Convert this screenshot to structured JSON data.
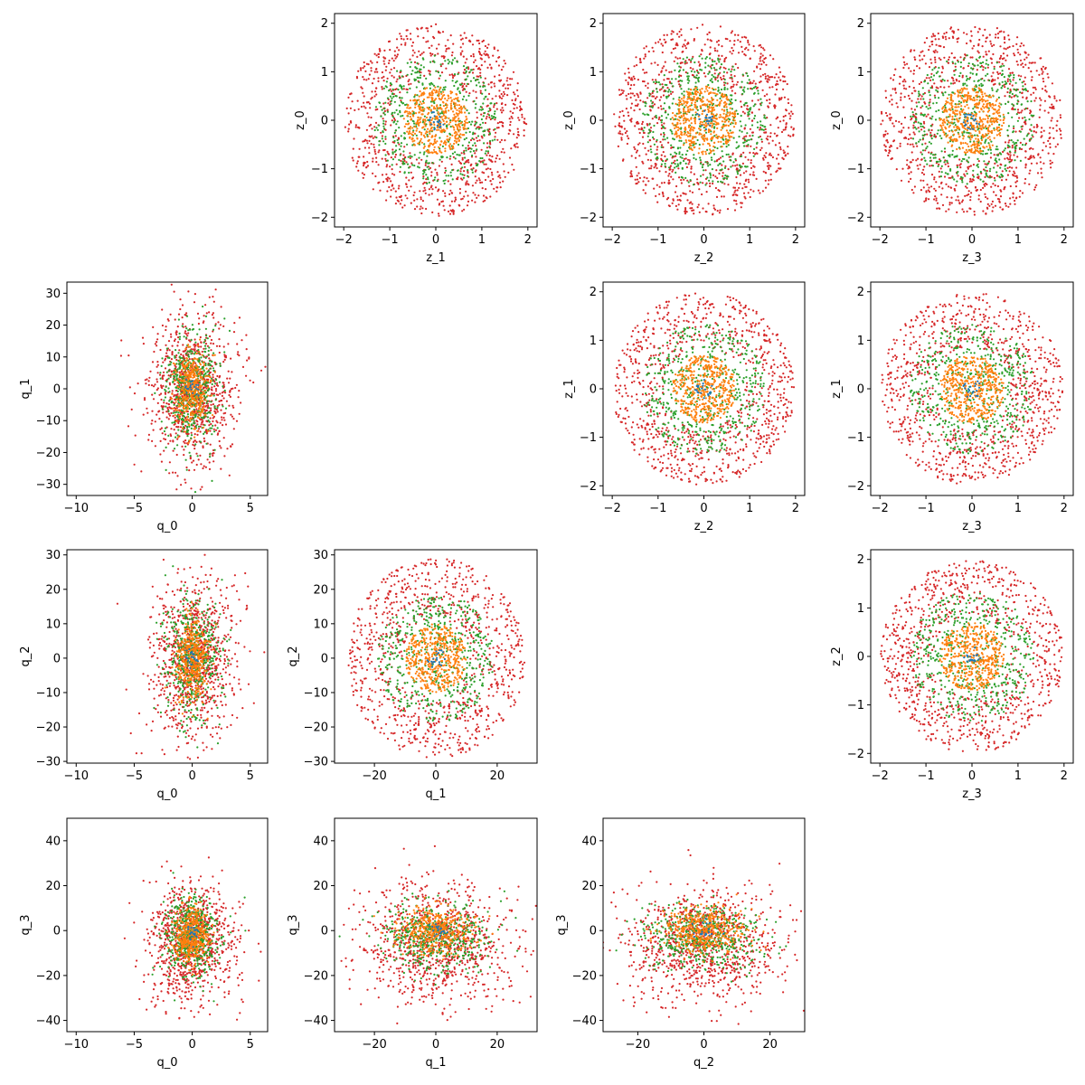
{
  "colors": {
    "background": "#ffffff",
    "series": [
      "#1f77b4",
      "#ff7f0e",
      "#2ca02c",
      "#d62728"
    ]
  },
  "chart_data": [
    {
      "type": "scatter",
      "xlabel": "z_1",
      "ylabel": "z_0",
      "xlim": [
        -2.2,
        2.2
      ],
      "ylim": [
        -2.2,
        2.2
      ],
      "xticks": [
        -2,
        -1,
        0,
        1,
        2
      ],
      "yticks": [
        -2,
        -1,
        0,
        1,
        2
      ],
      "grid": false,
      "series": [
        {
          "color": "#1f77b4",
          "distribution": "uniform-disk",
          "center": [
            0,
            0
          ],
          "radius": 0.2,
          "count": 20
        },
        {
          "color": "#ff7f0e",
          "distribution": "uniform-disk",
          "center": [
            0,
            0
          ],
          "radius": 0.7,
          "count": 450
        },
        {
          "color": "#2ca02c",
          "distribution": "uniform-disk",
          "center": [
            0,
            0
          ],
          "radius": 1.35,
          "count": 500
        },
        {
          "color": "#d62728",
          "distribution": "annulus",
          "center": [
            0,
            0
          ],
          "radius_inner": 0.85,
          "radius_outer": 1.98,
          "count": 900
        }
      ]
    },
    {
      "type": "scatter",
      "xlabel": "z_2",
      "ylabel": "z_0",
      "xlim": [
        -2.2,
        2.2
      ],
      "ylim": [
        -2.2,
        2.2
      ],
      "xticks": [
        -2,
        -1,
        0,
        1,
        2
      ],
      "yticks": [
        -2,
        -1,
        0,
        1,
        2
      ],
      "grid": false,
      "series": [
        {
          "color": "#1f77b4",
          "distribution": "uniform-disk",
          "center": [
            0,
            0
          ],
          "radius": 0.2,
          "count": 20
        },
        {
          "color": "#ff7f0e",
          "distribution": "uniform-disk",
          "center": [
            0,
            0
          ],
          "radius": 0.7,
          "count": 450
        },
        {
          "color": "#2ca02c",
          "distribution": "uniform-disk",
          "center": [
            0,
            0
          ],
          "radius": 1.35,
          "count": 500
        },
        {
          "color": "#d62728",
          "distribution": "annulus",
          "center": [
            0,
            0
          ],
          "radius_inner": 0.85,
          "radius_outer": 1.98,
          "count": 900
        }
      ]
    },
    {
      "type": "scatter",
      "xlabel": "z_3",
      "ylabel": "z_0",
      "xlim": [
        -2.2,
        2.2
      ],
      "ylim": [
        -2.2,
        2.2
      ],
      "xticks": [
        -2,
        -1,
        0,
        1,
        2
      ],
      "yticks": [
        -2,
        -1,
        0,
        1,
        2
      ],
      "grid": false,
      "series": [
        {
          "color": "#1f77b4",
          "distribution": "uniform-disk",
          "center": [
            0,
            0
          ],
          "radius": 0.2,
          "count": 20
        },
        {
          "color": "#ff7f0e",
          "distribution": "uniform-disk",
          "center": [
            0,
            0
          ],
          "radius": 0.7,
          "count": 450
        },
        {
          "color": "#2ca02c",
          "distribution": "uniform-disk",
          "center": [
            0,
            0
          ],
          "radius": 1.35,
          "count": 500
        },
        {
          "color": "#d62728",
          "distribution": "annulus",
          "center": [
            0,
            0
          ],
          "radius_inner": 0.85,
          "radius_outer": 1.98,
          "count": 900
        }
      ]
    },
    {
      "type": "scatter",
      "xlabel": "q_0",
      "ylabel": "q_1",
      "xlim": [
        -10.8,
        6.5
      ],
      "ylim": [
        -33.5,
        33.5
      ],
      "xticks": [
        -10,
        -5,
        0,
        5
      ],
      "yticks": [
        -30,
        -20,
        -10,
        0,
        10,
        20,
        30
      ],
      "grid": false,
      "series": [
        {
          "color": "#1f77b4",
          "distribution": "gaussian",
          "center": [
            0,
            0
          ],
          "spread": [
            0.3,
            2
          ],
          "count": 20
        },
        {
          "color": "#ff7f0e",
          "distribution": "gaussian",
          "center": [
            0,
            0
          ],
          "spread": [
            0.7,
            6
          ],
          "count": 400
        },
        {
          "color": "#2ca02c",
          "distribution": "gaussian",
          "center": [
            0,
            0
          ],
          "spread": [
            1.2,
            9
          ],
          "count": 500
        },
        {
          "color": "#d62728",
          "distribution": "gaussian",
          "center": [
            0,
            0
          ],
          "spread": [
            1.9,
            12
          ],
          "count": 900
        }
      ]
    },
    {
      "type": "scatter",
      "xlabel": "z_2",
      "ylabel": "z_1",
      "xlim": [
        -2.2,
        2.2
      ],
      "ylim": [
        -2.2,
        2.2
      ],
      "xticks": [
        -2,
        -1,
        0,
        1,
        2
      ],
      "yticks": [
        -2,
        -1,
        0,
        1,
        2
      ],
      "grid": false,
      "series": [
        {
          "color": "#1f77b4",
          "distribution": "uniform-disk",
          "center": [
            0,
            0
          ],
          "radius": 0.2,
          "count": 20
        },
        {
          "color": "#ff7f0e",
          "distribution": "uniform-disk",
          "center": [
            0,
            0
          ],
          "radius": 0.7,
          "count": 450
        },
        {
          "color": "#2ca02c",
          "distribution": "uniform-disk",
          "center": [
            0,
            0
          ],
          "radius": 1.35,
          "count": 500
        },
        {
          "color": "#d62728",
          "distribution": "annulus",
          "center": [
            0,
            0
          ],
          "radius_inner": 0.85,
          "radius_outer": 1.98,
          "count": 900
        }
      ]
    },
    {
      "type": "scatter",
      "xlabel": "z_3",
      "ylabel": "z_1",
      "xlim": [
        -2.2,
        2.2
      ],
      "ylim": [
        -2.2,
        2.2
      ],
      "xticks": [
        -2,
        -1,
        0,
        1,
        2
      ],
      "yticks": [
        -2,
        -1,
        0,
        1,
        2
      ],
      "grid": false,
      "series": [
        {
          "color": "#1f77b4",
          "distribution": "uniform-disk",
          "center": [
            0,
            0
          ],
          "radius": 0.2,
          "count": 20
        },
        {
          "color": "#ff7f0e",
          "distribution": "uniform-disk",
          "center": [
            0,
            0
          ],
          "radius": 0.7,
          "count": 450
        },
        {
          "color": "#2ca02c",
          "distribution": "uniform-disk",
          "center": [
            0,
            0
          ],
          "radius": 1.35,
          "count": 500
        },
        {
          "color": "#d62728",
          "distribution": "annulus",
          "center": [
            0,
            0
          ],
          "radius_inner": 0.85,
          "radius_outer": 1.98,
          "count": 900
        }
      ]
    },
    {
      "type": "scatter",
      "xlabel": "q_0",
      "ylabel": "q_2",
      "xlim": [
        -10.8,
        6.5
      ],
      "ylim": [
        -30.5,
        31.5
      ],
      "xticks": [
        -10,
        -5,
        0,
        5
      ],
      "yticks": [
        -30,
        -20,
        -10,
        0,
        10,
        20,
        30
      ],
      "grid": false,
      "series": [
        {
          "color": "#1f77b4",
          "distribution": "gaussian",
          "center": [
            0,
            0
          ],
          "spread": [
            0.3,
            2
          ],
          "count": 20
        },
        {
          "color": "#ff7f0e",
          "distribution": "gaussian",
          "center": [
            0,
            0
          ],
          "spread": [
            0.7,
            6
          ],
          "count": 400
        },
        {
          "color": "#2ca02c",
          "distribution": "gaussian",
          "center": [
            0,
            0
          ],
          "spread": [
            1.2,
            9
          ],
          "count": 500
        },
        {
          "color": "#d62728",
          "distribution": "gaussian",
          "center": [
            0,
            0
          ],
          "spread": [
            1.9,
            12
          ],
          "count": 900
        }
      ]
    },
    {
      "type": "scatter",
      "xlabel": "q_1",
      "ylabel": "q_2",
      "xlim": [
        -33,
        33
      ],
      "ylim": [
        -30.5,
        31.5
      ],
      "xticks": [
        -20,
        0,
        20
      ],
      "yticks": [
        -30,
        -20,
        -10,
        0,
        10,
        20,
        30
      ],
      "grid": false,
      "series": [
        {
          "color": "#1f77b4",
          "distribution": "uniform-disk",
          "center": [
            0,
            0
          ],
          "radius": 3,
          "count": 20
        },
        {
          "color": "#ff7f0e",
          "distribution": "uniform-disk",
          "center": [
            0,
            0
          ],
          "radius": 10,
          "count": 450
        },
        {
          "color": "#2ca02c",
          "distribution": "uniform-disk",
          "center": [
            0,
            0
          ],
          "radius": 19,
          "count": 500
        },
        {
          "color": "#d62728",
          "distribution": "annulus",
          "center": [
            0,
            0
          ],
          "radius_inner": 11,
          "radius_outer": 29,
          "count": 900
        }
      ]
    },
    {
      "type": "scatter",
      "xlabel": "z_3",
      "ylabel": "z_2",
      "xlim": [
        -2.2,
        2.2
      ],
      "ylim": [
        -2.2,
        2.2
      ],
      "xticks": [
        -2,
        -1,
        0,
        1,
        2
      ],
      "yticks": [
        -2,
        -1,
        0,
        1,
        2
      ],
      "grid": false,
      "series": [
        {
          "color": "#1f77b4",
          "distribution": "uniform-disk",
          "center": [
            0,
            0
          ],
          "radius": 0.2,
          "count": 20
        },
        {
          "color": "#ff7f0e",
          "distribution": "uniform-disk",
          "center": [
            0,
            0
          ],
          "radius": 0.7,
          "count": 450
        },
        {
          "color": "#2ca02c",
          "distribution": "uniform-disk",
          "center": [
            0,
            0
          ],
          "radius": 1.35,
          "count": 500
        },
        {
          "color": "#d62728",
          "distribution": "annulus",
          "center": [
            0,
            0
          ],
          "radius_inner": 0.85,
          "radius_outer": 1.98,
          "count": 900
        }
      ]
    },
    {
      "type": "scatter",
      "xlabel": "q_0",
      "ylabel": "q_3",
      "xlim": [
        -10.8,
        6.5
      ],
      "ylim": [
        -45,
        50
      ],
      "xticks": [
        -10,
        -5,
        0,
        5
      ],
      "yticks": [
        -40,
        -20,
        0,
        20,
        40
      ],
      "grid": false,
      "series": [
        {
          "color": "#1f77b4",
          "distribution": "gaussian",
          "center": [
            0,
            -2
          ],
          "spread": [
            0.3,
            2
          ],
          "count": 20
        },
        {
          "color": "#ff7f0e",
          "distribution": "gaussian",
          "center": [
            0,
            -2
          ],
          "spread": [
            0.7,
            6
          ],
          "count": 400
        },
        {
          "color": "#2ca02c",
          "distribution": "gaussian",
          "center": [
            0,
            -2
          ],
          "spread": [
            1.2,
            9
          ],
          "count": 500
        },
        {
          "color": "#d62728",
          "distribution": "gaussian",
          "center": [
            0,
            -5
          ],
          "spread": [
            1.9,
            13
          ],
          "count": 900
        }
      ]
    },
    {
      "type": "scatter",
      "xlabel": "q_1",
      "ylabel": "q_3",
      "xlim": [
        -33,
        33
      ],
      "ylim": [
        -45,
        50
      ],
      "xticks": [
        -20,
        0,
        20
      ],
      "yticks": [
        -40,
        -20,
        0,
        20,
        40
      ],
      "grid": false,
      "series": [
        {
          "color": "#1f77b4",
          "distribution": "gaussian",
          "center": [
            0,
            0
          ],
          "spread": [
            2,
            2
          ],
          "count": 20
        },
        {
          "color": "#ff7f0e",
          "distribution": "gaussian",
          "center": [
            0,
            0
          ],
          "spread": [
            6,
            5
          ],
          "count": 400
        },
        {
          "color": "#2ca02c",
          "distribution": "gaussian",
          "center": [
            0,
            -3
          ],
          "spread": [
            9,
            7
          ],
          "count": 500
        },
        {
          "color": "#d62728",
          "distribution": "gaussian",
          "center": [
            0,
            -6
          ],
          "spread": [
            12,
            13
          ],
          "count": 900
        }
      ]
    },
    {
      "type": "scatter",
      "xlabel": "q_2",
      "ylabel": "q_3",
      "xlim": [
        -30.5,
        30.5
      ],
      "ylim": [
        -45,
        50
      ],
      "xticks": [
        -20,
        0,
        20
      ],
      "yticks": [
        -40,
        -20,
        0,
        20,
        40
      ],
      "grid": false,
      "series": [
        {
          "color": "#1f77b4",
          "distribution": "gaussian",
          "center": [
            0,
            0
          ],
          "spread": [
            2,
            2
          ],
          "count": 20
        },
        {
          "color": "#ff7f0e",
          "distribution": "gaussian",
          "center": [
            0,
            0
          ],
          "spread": [
            6,
            5
          ],
          "count": 400
        },
        {
          "color": "#2ca02c",
          "distribution": "gaussian",
          "center": [
            0,
            -3
          ],
          "spread": [
            9,
            7
          ],
          "count": 500
        },
        {
          "color": "#d62728",
          "distribution": "gaussian",
          "center": [
            0,
            -6
          ],
          "spread": [
            12,
            13
          ],
          "count": 900
        }
      ]
    }
  ]
}
